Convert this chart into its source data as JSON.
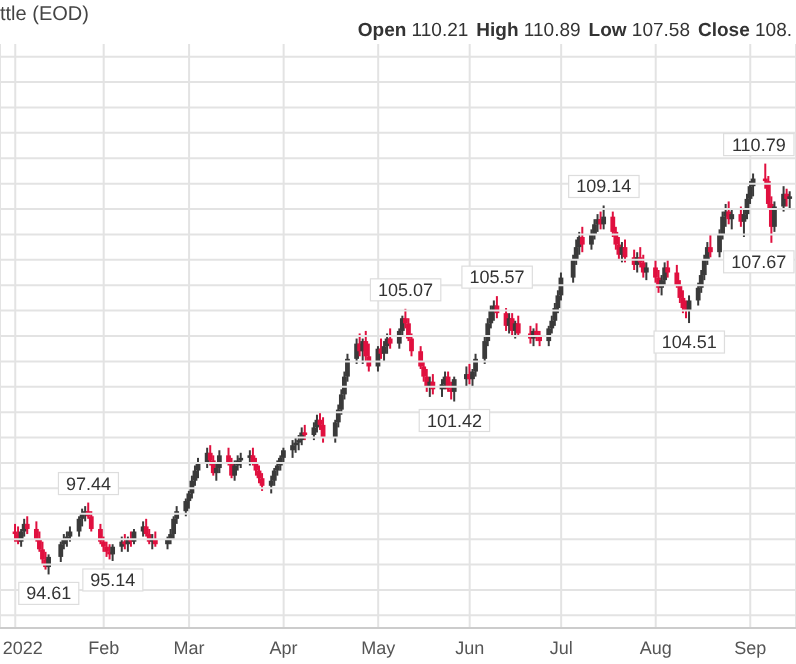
{
  "chart_data": {
    "type": "candlestick",
    "title": "ttle (EOD)",
    "annotations": [
      "Open 110.21",
      "High 110.89",
      "Low 107.58",
      "Close 108.",
      {
        "text": "94.61",
        "x": "2022-01-14",
        "y": 94.61
      },
      {
        "text": "97.44",
        "x": "2022-01-27",
        "y": 97.44
      },
      {
        "text": "95.14",
        "x": "2022-02-04",
        "y": 95.14
      },
      {
        "text": "105.07",
        "x": "2022-05-11",
        "y": 105.07
      },
      {
        "text": "101.42",
        "x": "2022-05-27",
        "y": 101.42
      },
      {
        "text": "105.57",
        "x": "2022-06-10",
        "y": 105.57
      },
      {
        "text": "109.14",
        "x": "2022-07-15",
        "y": 109.14
      },
      {
        "text": "104.51",
        "x": "2022-08-12",
        "y": 104.51
      },
      {
        "text": "110.79",
        "x": "2022-09-06",
        "y": 110.79
      },
      {
        "text": "107.67",
        "x": "2022-09-08",
        "y": 107.67
      }
    ],
    "x": [
      "2022-01-03",
      "2022-01-04",
      "2022-01-05",
      "2022-01-06",
      "2022-01-07",
      "2022-01-10",
      "2022-01-11",
      "2022-01-12",
      "2022-01-13",
      "2022-01-14",
      "2022-01-18",
      "2022-01-19",
      "2022-01-20",
      "2022-01-21",
      "2022-01-24",
      "2022-01-25",
      "2022-01-26",
      "2022-01-27",
      "2022-01-28",
      "2022-01-31",
      "2022-02-01",
      "2022-02-02",
      "2022-02-03",
      "2022-02-04",
      "2022-02-07",
      "2022-02-08",
      "2022-02-09",
      "2022-02-10",
      "2022-02-11",
      "2022-02-14",
      "2022-02-15",
      "2022-02-16",
      "2022-02-17",
      "2022-02-18",
      "2022-02-22",
      "2022-02-23",
      "2022-02-24",
      "2022-02-25",
      "2022-02-28",
      "2022-03-01",
      "2022-03-02",
      "2022-03-03",
      "2022-03-04",
      "2022-03-07",
      "2022-03-08",
      "2022-03-09",
      "2022-03-10",
      "2022-03-11",
      "2022-03-14",
      "2022-03-15",
      "2022-03-16",
      "2022-03-17",
      "2022-03-18",
      "2022-03-21",
      "2022-03-22",
      "2022-03-23",
      "2022-03-24",
      "2022-03-25",
      "2022-03-28",
      "2022-03-29",
      "2022-03-30",
      "2022-03-31",
      "2022-04-01",
      "2022-04-04",
      "2022-04-05",
      "2022-04-06",
      "2022-04-07",
      "2022-04-08",
      "2022-04-11",
      "2022-04-12",
      "2022-04-13",
      "2022-04-14",
      "2022-04-18",
      "2022-04-19",
      "2022-04-20",
      "2022-04-21",
      "2022-04-22",
      "2022-04-25",
      "2022-04-26",
      "2022-04-27",
      "2022-04-28",
      "2022-04-29",
      "2022-05-02",
      "2022-05-03",
      "2022-05-04",
      "2022-05-05",
      "2022-05-06",
      "2022-05-09",
      "2022-05-10",
      "2022-05-11",
      "2022-05-12",
      "2022-05-13",
      "2022-05-16",
      "2022-05-17",
      "2022-05-18",
      "2022-05-19",
      "2022-05-20",
      "2022-05-23",
      "2022-05-24",
      "2022-05-25",
      "2022-05-26",
      "2022-05-27",
      "2022-05-31",
      "2022-06-01",
      "2022-06-02",
      "2022-06-03",
      "2022-06-06",
      "2022-06-07",
      "2022-06-08",
      "2022-06-09",
      "2022-06-10",
      "2022-06-13",
      "2022-06-14",
      "2022-06-15",
      "2022-06-16",
      "2022-06-17",
      "2022-06-21",
      "2022-06-22",
      "2022-06-23",
      "2022-06-24",
      "2022-06-27",
      "2022-06-28",
      "2022-06-29",
      "2022-06-30",
      "2022-07-01",
      "2022-07-05",
      "2022-07-06",
      "2022-07-07",
      "2022-07-08",
      "2022-07-11",
      "2022-07-12",
      "2022-07-13",
      "2022-07-14",
      "2022-07-15",
      "2022-07-18",
      "2022-07-19",
      "2022-07-20",
      "2022-07-21",
      "2022-07-22",
      "2022-07-25",
      "2022-07-26",
      "2022-07-27",
      "2022-07-28",
      "2022-07-29",
      "2022-08-01",
      "2022-08-02",
      "2022-08-03",
      "2022-08-04",
      "2022-08-05",
      "2022-08-08",
      "2022-08-09",
      "2022-08-10",
      "2022-08-11",
      "2022-08-12",
      "2022-08-15",
      "2022-08-16",
      "2022-08-17",
      "2022-08-18",
      "2022-08-19",
      "2022-08-22",
      "2022-08-23",
      "2022-08-24",
      "2022-08-25",
      "2022-08-26",
      "2022-08-29",
      "2022-08-30",
      "2022-08-31",
      "2022-09-01",
      "2022-09-02",
      "2022-09-06",
      "2022-09-07",
      "2022-09-08",
      "2022-09-09",
      "2022-09-12",
      "2022-09-13",
      "2022-09-14"
    ],
    "ohlc": [
      [
        96.3,
        96.6,
        95.9,
        96.2
      ],
      [
        96.2,
        96.5,
        95.8,
        95.9
      ],
      [
        95.9,
        96.4,
        95.7,
        96.3
      ],
      [
        96.3,
        96.8,
        96.1,
        96.6
      ],
      [
        96.6,
        96.9,
        96.2,
        96.4
      ],
      [
        96.4,
        96.7,
        95.9,
        96.0
      ],
      [
        96.0,
        96.3,
        95.5,
        95.6
      ],
      [
        95.6,
        95.9,
        95.0,
        95.2
      ],
      [
        95.2,
        95.5,
        94.8,
        94.9
      ],
      [
        94.9,
        95.4,
        94.61,
        95.3
      ],
      [
        95.3,
        95.9,
        95.1,
        95.8
      ],
      [
        95.8,
        96.2,
        95.6,
        96.0
      ],
      [
        96.0,
        96.3,
        95.7,
        96.1
      ],
      [
        96.1,
        96.5,
        95.9,
        96.3
      ],
      [
        96.3,
        96.9,
        96.1,
        96.8
      ],
      [
        96.8,
        97.2,
        96.5,
        97.0
      ],
      [
        97.0,
        97.3,
        96.7,
        97.1
      ],
      [
        97.1,
        97.44,
        96.8,
        96.9
      ],
      [
        96.9,
        97.1,
        96.3,
        96.4
      ],
      [
        96.4,
        96.6,
        95.8,
        95.9
      ],
      [
        95.9,
        96.1,
        95.5,
        95.7
      ],
      [
        95.7,
        95.9,
        95.3,
        95.5
      ],
      [
        95.5,
        95.8,
        95.2,
        95.4
      ],
      [
        95.4,
        95.8,
        95.14,
        95.7
      ],
      [
        95.7,
        96.1,
        95.5,
        95.9
      ],
      [
        95.9,
        96.2,
        95.6,
        95.8
      ],
      [
        95.8,
        96.1,
        95.5,
        96.0
      ],
      [
        96.0,
        96.3,
        95.7,
        95.9
      ],
      [
        95.9,
        96.4,
        95.8,
        96.3
      ],
      [
        96.3,
        96.7,
        96.1,
        96.5
      ],
      [
        96.5,
        96.8,
        96.1,
        96.2
      ],
      [
        96.2,
        96.4,
        95.8,
        95.9
      ],
      [
        95.9,
        96.2,
        95.6,
        96.0
      ],
      [
        96.0,
        96.3,
        95.7,
        95.8
      ],
      [
        95.8,
        96.1,
        95.6,
        96.0
      ],
      [
        96.0,
        96.4,
        95.8,
        96.2
      ],
      [
        96.2,
        96.9,
        96.0,
        96.8
      ],
      [
        96.8,
        97.3,
        96.6,
        97.1
      ],
      [
        97.1,
        97.6,
        96.9,
        97.5
      ],
      [
        97.5,
        97.9,
        97.2,
        97.8
      ],
      [
        97.8,
        98.5,
        97.6,
        98.3
      ],
      [
        98.3,
        98.9,
        98.1,
        98.7
      ],
      [
        98.7,
        99.2,
        98.4,
        99.0
      ],
      [
        99.0,
        99.6,
        98.8,
        99.4
      ],
      [
        99.4,
        99.7,
        98.9,
        99.1
      ],
      [
        99.1,
        99.3,
        98.5,
        98.6
      ],
      [
        98.6,
        99.0,
        98.3,
        98.8
      ],
      [
        98.8,
        99.5,
        98.6,
        99.3
      ],
      [
        99.3,
        99.6,
        98.9,
        99.0
      ],
      [
        99.0,
        99.2,
        98.4,
        98.5
      ],
      [
        98.5,
        99.1,
        98.3,
        98.9
      ],
      [
        98.9,
        99.3,
        98.7,
        99.1
      ],
      [
        99.1,
        99.4,
        98.8,
        99.2
      ],
      [
        99.2,
        99.5,
        98.9,
        99.3
      ],
      [
        99.3,
        99.6,
        98.9,
        99.0
      ],
      [
        99.0,
        99.2,
        98.5,
        98.7
      ],
      [
        98.7,
        98.9,
        98.2,
        98.4
      ],
      [
        98.4,
        98.6,
        97.9,
        98.1
      ],
      [
        98.1,
        98.5,
        97.8,
        98.3
      ],
      [
        98.3,
        98.8,
        98.1,
        98.7
      ],
      [
        98.7,
        99.1,
        98.5,
        98.9
      ],
      [
        98.9,
        99.3,
        98.7,
        99.2
      ],
      [
        99.2,
        99.6,
        99.0,
        99.5
      ],
      [
        99.5,
        99.9,
        99.2,
        99.7
      ],
      [
        99.7,
        100.0,
        99.4,
        99.8
      ],
      [
        99.8,
        100.1,
        99.5,
        99.9
      ],
      [
        99.9,
        100.4,
        99.7,
        100.2
      ],
      [
        100.2,
        100.5,
        99.9,
        100.1
      ],
      [
        100.1,
        100.6,
        99.9,
        100.4
      ],
      [
        100.4,
        100.9,
        100.2,
        100.7
      ],
      [
        100.7,
        101.0,
        100.3,
        100.5
      ],
      [
        100.5,
        100.8,
        99.8,
        100.0
      ],
      [
        100.0,
        100.7,
        99.8,
        100.6
      ],
      [
        100.6,
        101.3,
        100.4,
        101.1
      ],
      [
        101.1,
        101.9,
        100.9,
        101.7
      ],
      [
        101.7,
        102.6,
        101.5,
        102.4
      ],
      [
        102.4,
        103.3,
        102.2,
        103.1
      ],
      [
        103.1,
        103.9,
        102.9,
        103.7
      ],
      [
        103.7,
        104.1,
        103.2,
        103.4
      ],
      [
        103.4,
        103.9,
        102.9,
        103.8
      ],
      [
        103.8,
        104.2,
        103.0,
        103.2
      ],
      [
        103.2,
        103.7,
        102.6,
        102.8
      ],
      [
        102.8,
        103.6,
        102.6,
        103.5
      ],
      [
        103.5,
        103.9,
        103.1,
        103.3
      ],
      [
        103.3,
        103.8,
        103.0,
        103.6
      ],
      [
        103.6,
        104.1,
        103.3,
        103.9
      ],
      [
        103.9,
        104.3,
        103.5,
        103.7
      ],
      [
        103.7,
        104.3,
        103.5,
        104.2
      ],
      [
        104.2,
        104.8,
        104.0,
        104.7
      ],
      [
        104.7,
        105.07,
        104.3,
        104.5
      ],
      [
        104.5,
        104.7,
        103.8,
        103.9
      ],
      [
        103.9,
        104.1,
        103.2,
        103.4
      ],
      [
        103.4,
        103.6,
        102.7,
        102.8
      ],
      [
        102.8,
        103.0,
        102.2,
        102.4
      ],
      [
        102.4,
        102.7,
        101.8,
        102.0
      ],
      [
        102.0,
        102.4,
        101.6,
        102.2
      ],
      [
        102.2,
        102.5,
        101.7,
        101.9
      ],
      [
        101.9,
        102.3,
        101.6,
        102.1
      ],
      [
        102.1,
        102.6,
        101.9,
        102.4
      ],
      [
        102.4,
        102.6,
        101.8,
        101.9
      ],
      [
        101.9,
        102.2,
        101.5,
        101.8
      ],
      [
        101.8,
        102.4,
        101.42,
        102.3
      ],
      [
        102.3,
        102.8,
        102.0,
        102.5
      ],
      [
        102.5,
        102.9,
        102.1,
        102.3
      ],
      [
        102.3,
        102.7,
        102.0,
        102.6
      ],
      [
        102.6,
        103.3,
        102.4,
        103.1
      ],
      [
        103.1,
        104.0,
        102.9,
        103.8
      ],
      [
        103.8,
        104.7,
        103.6,
        104.5
      ],
      [
        104.5,
        105.2,
        104.3,
        105.0
      ],
      [
        105.0,
        105.4,
        104.6,
        105.2
      ],
      [
        105.2,
        105.57,
        104.7,
        104.9
      ],
      [
        104.9,
        105.1,
        104.2,
        104.4
      ],
      [
        104.4,
        104.9,
        104.1,
        104.7
      ],
      [
        104.7,
        104.9,
        104.0,
        104.2
      ],
      [
        104.2,
        104.6,
        103.9,
        104.5
      ],
      [
        104.5,
        104.8,
        104.0,
        104.1
      ],
      [
        104.1,
        104.4,
        103.7,
        103.9
      ],
      [
        103.9,
        104.3,
        103.6,
        104.2
      ],
      [
        104.2,
        104.5,
        103.8,
        104.0
      ],
      [
        104.0,
        104.2,
        103.6,
        103.8
      ],
      [
        103.8,
        104.4,
        103.6,
        104.3
      ],
      [
        104.3,
        104.8,
        104.1,
        104.6
      ],
      [
        104.6,
        105.3,
        104.4,
        105.1
      ],
      [
        105.1,
        105.8,
        104.9,
        105.6
      ],
      [
        105.6,
        106.5,
        105.4,
        106.3
      ],
      [
        106.3,
        107.2,
        106.1,
        107.0
      ],
      [
        107.0,
        107.8,
        106.8,
        107.5
      ],
      [
        107.5,
        108.1,
        107.2,
        107.9
      ],
      [
        107.9,
        108.3,
        107.3,
        107.6
      ],
      [
        107.6,
        108.2,
        107.4,
        108.0
      ],
      [
        108.0,
        108.6,
        107.8,
        108.4
      ],
      [
        108.4,
        108.8,
        108.1,
        108.6
      ],
      [
        108.6,
        108.9,
        108.2,
        108.4
      ],
      [
        108.4,
        109.14,
        108.2,
        108.7
      ],
      [
        108.7,
        108.9,
        107.9,
        108.1
      ],
      [
        108.1,
        108.3,
        107.4,
        107.6
      ],
      [
        107.6,
        107.9,
        107.0,
        107.2
      ],
      [
        107.2,
        107.7,
        106.9,
        107.5
      ],
      [
        107.5,
        107.8,
        106.9,
        107.1
      ],
      [
        107.1,
        107.4,
        106.6,
        106.8
      ],
      [
        106.8,
        107.3,
        106.5,
        107.1
      ],
      [
        107.1,
        107.5,
        106.7,
        106.9
      ],
      [
        106.9,
        107.2,
        106.3,
        106.5
      ],
      [
        106.5,
        106.9,
        106.2,
        106.7
      ],
      [
        106.7,
        107.0,
        106.1,
        106.3
      ],
      [
        106.3,
        106.6,
        105.7,
        105.9
      ],
      [
        105.9,
        106.4,
        105.6,
        106.2
      ],
      [
        106.2,
        106.9,
        106.0,
        106.7
      ],
      [
        106.7,
        107.0,
        106.3,
        106.5
      ],
      [
        106.5,
        106.8,
        105.9,
        106.0
      ],
      [
        106.0,
        106.2,
        105.3,
        105.5
      ],
      [
        105.5,
        105.8,
        104.9,
        105.1
      ],
      [
        105.1,
        105.4,
        104.7,
        105.0
      ],
      [
        105.0,
        105.6,
        104.51,
        105.4
      ],
      [
        105.4,
        106.1,
        105.2,
        105.9
      ],
      [
        105.9,
        106.6,
        105.7,
        106.4
      ],
      [
        106.4,
        107.2,
        106.2,
        107.0
      ],
      [
        107.0,
        107.7,
        106.8,
        107.5
      ],
      [
        107.5,
        108.0,
        107.1,
        107.3
      ],
      [
        107.3,
        108.2,
        107.1,
        108.0
      ],
      [
        108.0,
        108.9,
        107.8,
        108.7
      ],
      [
        108.7,
        109.2,
        108.3,
        108.9
      ],
      [
        108.9,
        109.3,
        108.4,
        108.6
      ],
      [
        108.6,
        109.0,
        108.2,
        108.8
      ],
      [
        108.8,
        109.1,
        108.3,
        108.5
      ],
      [
        108.5,
        109.0,
        107.9,
        108.8
      ],
      [
        108.8,
        109.6,
        108.6,
        109.4
      ],
      [
        109.4,
        110.1,
        109.2,
        109.9
      ],
      [
        109.9,
        110.4,
        109.5,
        110.2
      ],
      [
        110.2,
        110.79,
        109.8,
        110.1
      ],
      [
        110.1,
        110.3,
        109.0,
        109.2
      ],
      [
        109.2,
        109.5,
        107.67,
        108.3
      ],
      [
        108.3,
        109.3,
        108.1,
        109.1
      ],
      [
        109.1,
        109.9,
        108.9,
        109.6
      ],
      [
        109.6,
        109.8,
        109.1,
        109.4
      ],
      [
        109.4,
        109.7,
        109.0,
        109.5
      ]
    ],
    "xlim": [
      "2021-12-29",
      "2022-09-16"
    ],
    "xticks": [
      {
        "value": "2022-01-03",
        "label": "2022"
      },
      {
        "value": "2022-02-01",
        "label": "Feb"
      },
      {
        "value": "2022-03-01",
        "label": "Mar"
      },
      {
        "value": "2022-04-01",
        "label": "Apr"
      },
      {
        "value": "2022-05-02",
        "label": "May"
      },
      {
        "value": "2022-06-01",
        "label": "Jun"
      },
      {
        "value": "2022-07-01",
        "label": "Jul"
      },
      {
        "value": "2022-08-01",
        "label": "Aug"
      },
      {
        "value": "2022-09-01",
        "label": "Sep"
      }
    ],
    "ylim": [
      92.5,
      115.5
    ],
    "yticks": [
      {
        "value": 93,
        "label": null
      },
      {
        "value": 94,
        "label": null
      },
      {
        "value": 95,
        "label": null
      },
      {
        "value": 96,
        "label": null
      },
      {
        "value": 97,
        "label": null
      },
      {
        "value": 98,
        "label": null
      },
      {
        "value": 99,
        "label": null
      },
      {
        "value": 100,
        "label": null
      },
      {
        "value": 101,
        "label": null
      },
      {
        "value": 102,
        "label": null
      },
      {
        "value": 103,
        "label": null
      },
      {
        "value": 104,
        "label": null
      },
      {
        "value": 105,
        "label": null
      },
      {
        "value": 106,
        "label": null
      },
      {
        "value": 107,
        "label": null
      },
      {
        "value": 108,
        "label": null
      },
      {
        "value": 109,
        "label": null
      },
      {
        "value": 110,
        "label": null
      },
      {
        "value": 111,
        "label": null
      },
      {
        "value": 112,
        "label": null
      },
      {
        "value": 113,
        "label": null
      },
      {
        "value": 114,
        "label": null
      },
      {
        "value": 115,
        "label": null
      }
    ],
    "grid": true,
    "tick_labels": "x"
  }
}
